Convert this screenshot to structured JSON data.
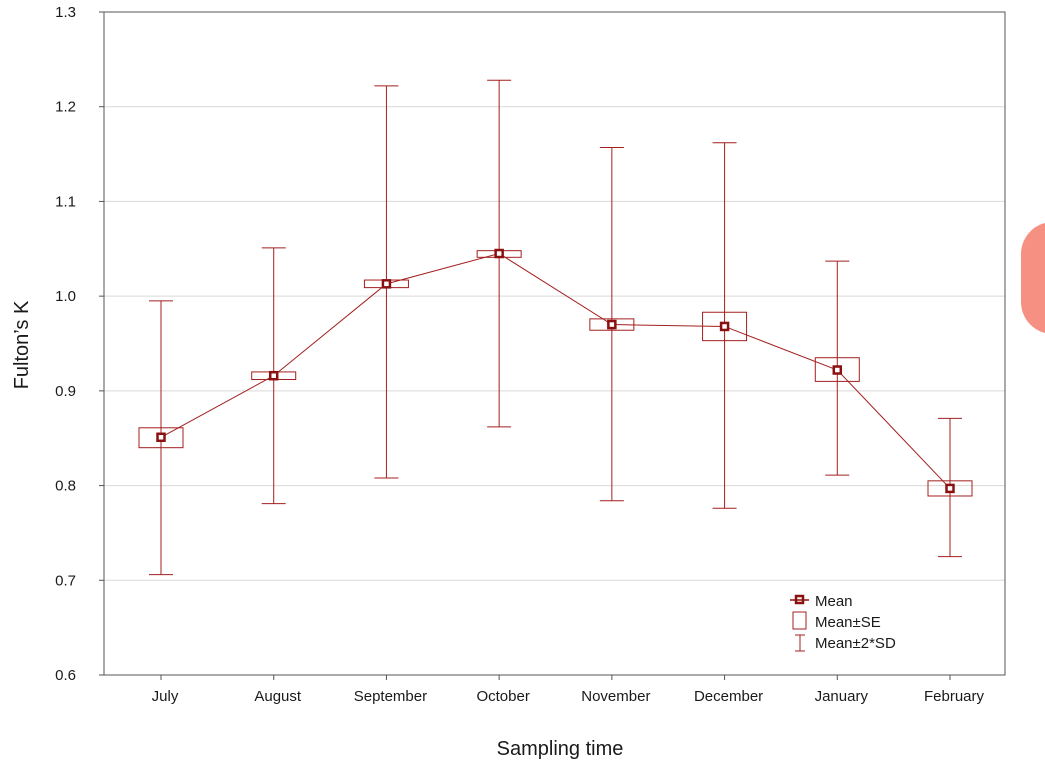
{
  "chart_data": {
    "type": "box",
    "title": "",
    "xlabel": "Sampling time",
    "ylabel": "Fulton’s K",
    "ylim": [
      0.6,
      1.3
    ],
    "yticks": [
      0.6,
      0.7,
      0.8,
      0.9,
      1.0,
      1.1,
      1.2,
      1.3
    ],
    "ytick_labels": [
      "0.6",
      "0.7",
      "0.8",
      "0.9",
      "1.0",
      "1.1",
      "1.2",
      "1.3"
    ],
    "grid": true,
    "legend_position": "bottom-right",
    "categories": [
      "July",
      "August",
      "September",
      "October",
      "November",
      "December",
      "January",
      "February"
    ],
    "series": [
      {
        "name": "Mean",
        "values": [
          0.851,
          0.916,
          1.013,
          1.045,
          0.97,
          0.968,
          0.922,
          0.797
        ]
      },
      {
        "name": "Mean±SE",
        "lower": [
          0.84,
          0.912,
          1.009,
          1.041,
          0.964,
          0.953,
          0.91,
          0.789
        ],
        "upper": [
          0.861,
          0.92,
          1.017,
          1.048,
          0.976,
          0.983,
          0.935,
          0.805
        ]
      },
      {
        "name": "Mean±2*SD",
        "lower": [
          0.706,
          0.781,
          0.808,
          0.862,
          0.784,
          0.776,
          0.811,
          0.725
        ],
        "upper": [
          0.995,
          1.051,
          1.222,
          1.228,
          1.157,
          1.162,
          1.037,
          0.871
        ]
      }
    ],
    "colors": {
      "series": "#a31f1f",
      "grid": "#d9d9d9",
      "frame": "#555555"
    }
  }
}
